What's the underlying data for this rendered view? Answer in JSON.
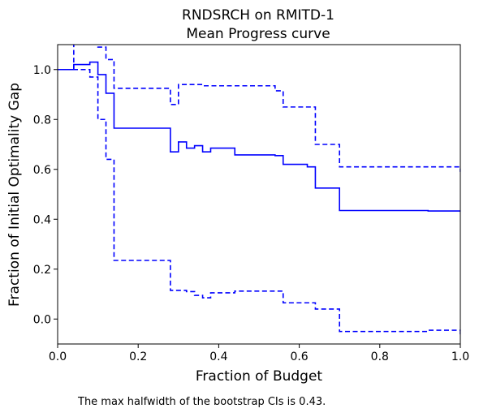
{
  "chart_data": {
    "type": "line",
    "title": "RNDSRCH on RMITD-1",
    "subtitle": "Mean Progress curve",
    "xlabel": "Fraction of Budget",
    "ylabel": "Fraction of Initial Optimality Gap",
    "xlim": [
      0.0,
      1.0
    ],
    "ylim": [
      -0.1,
      1.1
    ],
    "xticks": [
      0.0,
      0.2,
      0.4,
      0.6,
      0.8,
      1.0
    ],
    "xtick_labels": [
      "0.0",
      "0.2",
      "0.4",
      "0.6",
      "0.8",
      "1.0"
    ],
    "yticks": [
      0.0,
      0.2,
      0.4,
      0.6,
      0.8,
      1.0
    ],
    "ytick_labels": [
      "0.0",
      "0.2",
      "0.4",
      "0.6",
      "0.8",
      "1.0"
    ],
    "grid": false,
    "legend": "none",
    "color": "#0000ff",
    "series": [
      {
        "style": "solid",
        "step": "post",
        "x": [
          0.0,
          0.04,
          0.08,
          0.1,
          0.12,
          0.14,
          0.28,
          0.3,
          0.32,
          0.34,
          0.36,
          0.38,
          0.44,
          0.54,
          0.56,
          0.62,
          0.64,
          0.7,
          0.92,
          1.0
        ],
        "y": [
          1.0,
          1.02,
          1.03,
          0.98,
          0.905,
          0.765,
          0.67,
          0.71,
          0.685,
          0.695,
          0.67,
          0.685,
          0.658,
          0.655,
          0.62,
          0.61,
          0.525,
          0.435,
          0.433,
          0.43
        ]
      },
      {
        "style": "dashed",
        "step": "post",
        "x": [
          0.0,
          0.04,
          0.1,
          0.12,
          0.14,
          0.28,
          0.3,
          0.36,
          0.54,
          0.56,
          0.64,
          0.7,
          1.0
        ],
        "y": [
          1.0,
          1.12,
          1.09,
          1.04,
          0.925,
          0.86,
          0.94,
          0.935,
          0.915,
          0.85,
          0.7,
          0.61,
          0.59
        ]
      },
      {
        "style": "dashed",
        "step": "post",
        "x": [
          0.0,
          0.08,
          0.1,
          0.12,
          0.14,
          0.28,
          0.32,
          0.34,
          0.36,
          0.38,
          0.44,
          0.56,
          0.64,
          0.7,
          0.92,
          1.0
        ],
        "y": [
          1.0,
          0.97,
          0.8,
          0.64,
          0.235,
          0.115,
          0.11,
          0.095,
          0.085,
          0.105,
          0.112,
          0.065,
          0.04,
          -0.05,
          -0.045,
          -0.07
        ]
      }
    ]
  },
  "footnote": "The max halfwidth of the bootstrap CIs is 0.43."
}
